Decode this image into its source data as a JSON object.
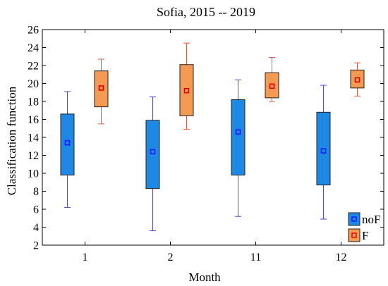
{
  "chart_data": {
    "type": "box",
    "title": "Sofia, 2015 -- 2019",
    "xlabel": "Month",
    "ylabel": "Classification function",
    "ylim": [
      2,
      26
    ],
    "yticks": [
      "2",
      "4",
      "6",
      "8",
      "10",
      "12",
      "14",
      "16",
      "18",
      "20",
      "22",
      "24",
      "26"
    ],
    "categories": [
      "1",
      "2",
      "11",
      "12"
    ],
    "grid": false,
    "legend_position": "bottom-right",
    "series": [
      {
        "name": "noF",
        "color": "#1e88e5",
        "marker_color": "#1a1aff",
        "boxes": [
          {
            "whisker_low": 6.2,
            "q1": 9.8,
            "median": 13.4,
            "q3": 16.6,
            "whisker_high": 19.1
          },
          {
            "whisker_low": 3.6,
            "q1": 8.3,
            "median": 12.4,
            "q3": 15.9,
            "whisker_high": 18.5
          },
          {
            "whisker_low": 5.2,
            "q1": 9.8,
            "median": 14.6,
            "q3": 18.2,
            "whisker_high": 20.4
          },
          {
            "whisker_low": 4.9,
            "q1": 8.7,
            "median": 12.5,
            "q3": 16.8,
            "whisker_high": 19.8
          }
        ]
      },
      {
        "name": "F",
        "color": "#f59a53",
        "marker_color": "#e00000",
        "boxes": [
          {
            "whisker_low": 15.5,
            "q1": 17.4,
            "median": 19.5,
            "q3": 21.4,
            "whisker_high": 22.7
          },
          {
            "whisker_low": 14.9,
            "q1": 16.4,
            "median": 19.2,
            "q3": 22.1,
            "whisker_high": 24.5
          },
          {
            "whisker_low": 18.0,
            "q1": 18.4,
            "median": 19.7,
            "q3": 21.2,
            "whisker_high": 22.9
          },
          {
            "whisker_low": 18.6,
            "q1": 19.5,
            "median": 20.4,
            "q3": 21.5,
            "whisker_high": 22.3
          }
        ]
      }
    ]
  }
}
